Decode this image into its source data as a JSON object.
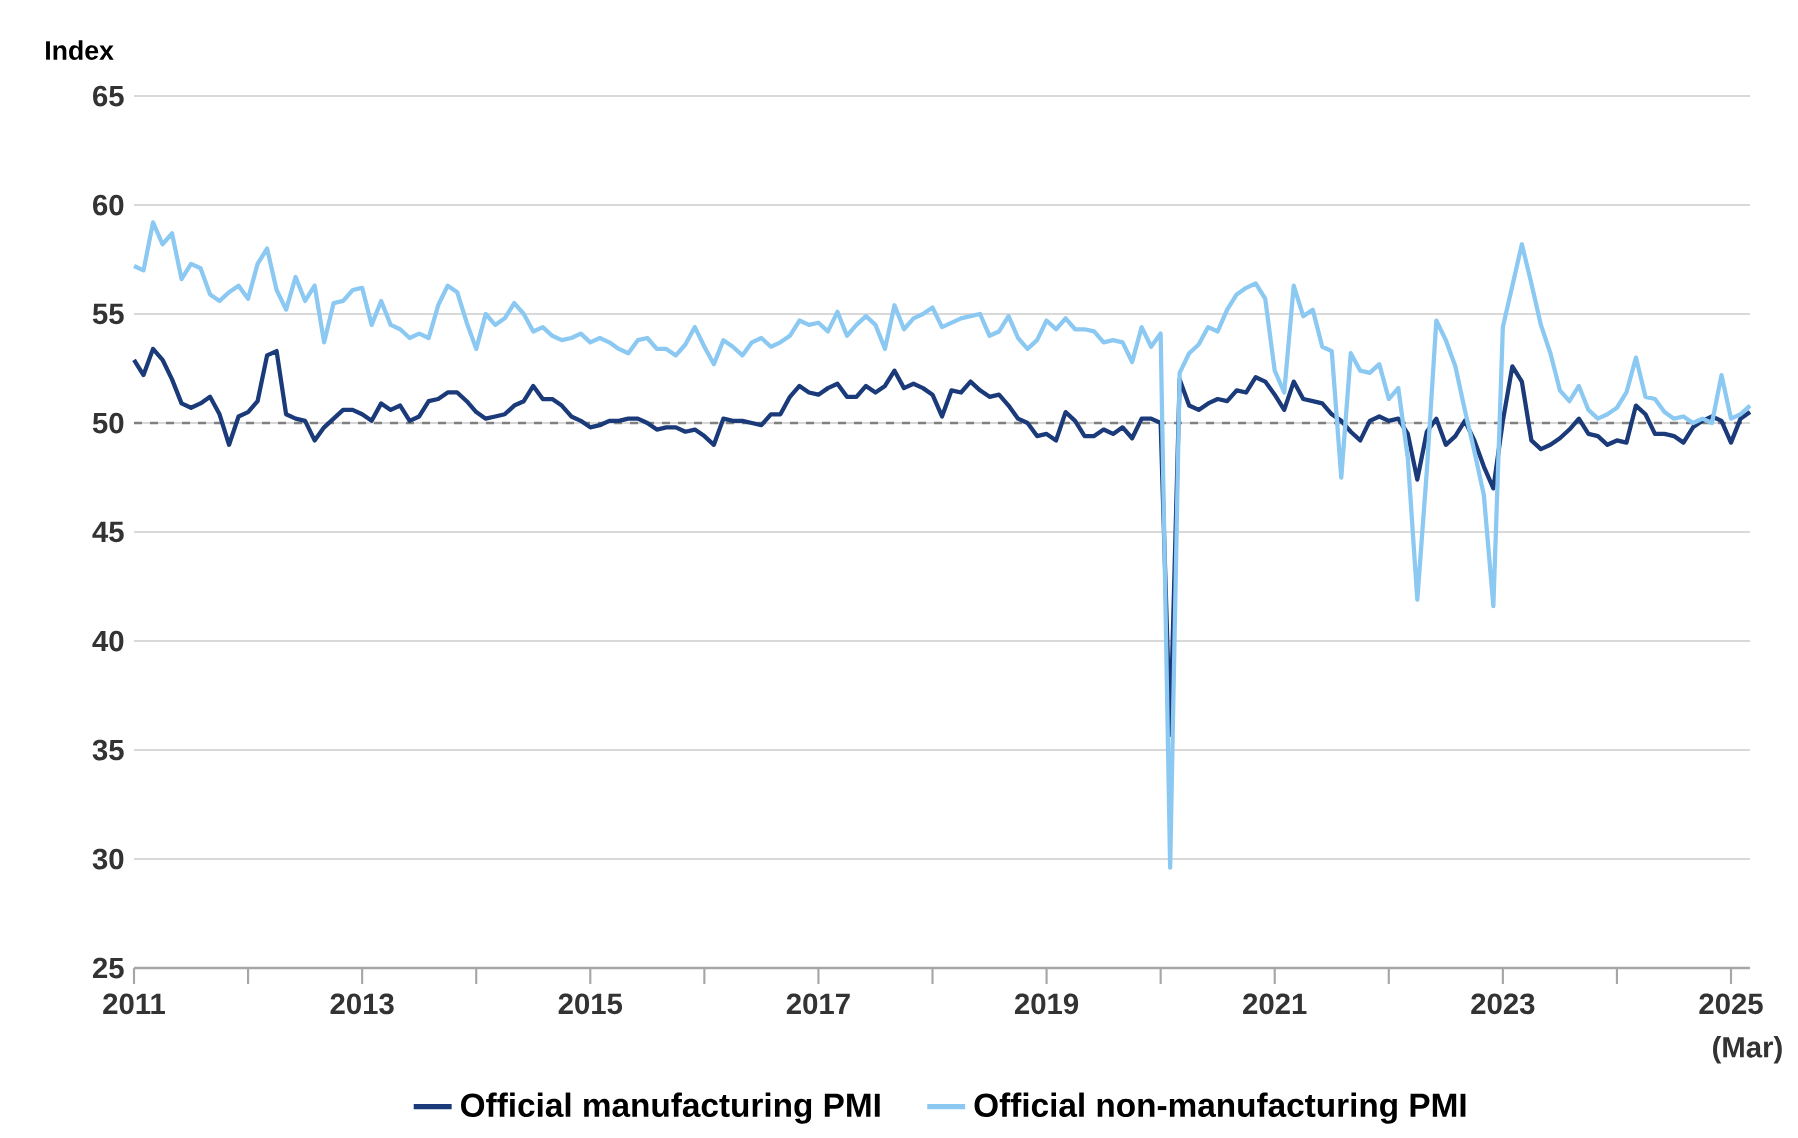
{
  "chart_data": {
    "type": "line",
    "ylabel": "Index",
    "x": [
      "2011-01",
      "2011-02",
      "2011-03",
      "2011-04",
      "2011-05",
      "2011-06",
      "2011-07",
      "2011-08",
      "2011-09",
      "2011-10",
      "2011-11",
      "2011-12",
      "2012-01",
      "2012-02",
      "2012-03",
      "2012-04",
      "2012-05",
      "2012-06",
      "2012-07",
      "2012-08",
      "2012-09",
      "2012-10",
      "2012-11",
      "2012-12",
      "2013-01",
      "2013-02",
      "2013-03",
      "2013-04",
      "2013-05",
      "2013-06",
      "2013-07",
      "2013-08",
      "2013-09",
      "2013-10",
      "2013-11",
      "2013-12",
      "2014-01",
      "2014-02",
      "2014-03",
      "2014-04",
      "2014-05",
      "2014-06",
      "2014-07",
      "2014-08",
      "2014-09",
      "2014-10",
      "2014-11",
      "2014-12",
      "2015-01",
      "2015-02",
      "2015-03",
      "2015-04",
      "2015-05",
      "2015-06",
      "2015-07",
      "2015-08",
      "2015-09",
      "2015-10",
      "2015-11",
      "2015-12",
      "2016-01",
      "2016-02",
      "2016-03",
      "2016-04",
      "2016-05",
      "2016-06",
      "2016-07",
      "2016-08",
      "2016-09",
      "2016-10",
      "2016-11",
      "2016-12",
      "2017-01",
      "2017-02",
      "2017-03",
      "2017-04",
      "2017-05",
      "2017-06",
      "2017-07",
      "2017-08",
      "2017-09",
      "2017-10",
      "2017-11",
      "2017-12",
      "2018-01",
      "2018-02",
      "2018-03",
      "2018-04",
      "2018-05",
      "2018-06",
      "2018-07",
      "2018-08",
      "2018-09",
      "2018-10",
      "2018-11",
      "2018-12",
      "2019-01",
      "2019-02",
      "2019-03",
      "2019-04",
      "2019-05",
      "2019-06",
      "2019-07",
      "2019-08",
      "2019-09",
      "2019-10",
      "2019-11",
      "2019-12",
      "2020-01",
      "2020-02",
      "2020-03",
      "2020-04",
      "2020-05",
      "2020-06",
      "2020-07",
      "2020-08",
      "2020-09",
      "2020-10",
      "2020-11",
      "2020-12",
      "2021-01",
      "2021-02",
      "2021-03",
      "2021-04",
      "2021-05",
      "2021-06",
      "2021-07",
      "2021-08",
      "2021-09",
      "2021-10",
      "2021-11",
      "2021-12",
      "2022-01",
      "2022-02",
      "2022-03",
      "2022-04",
      "2022-05",
      "2022-06",
      "2022-07",
      "2022-08",
      "2022-09",
      "2022-10",
      "2022-11",
      "2022-12",
      "2023-01",
      "2023-02",
      "2023-03",
      "2023-04",
      "2023-05",
      "2023-06",
      "2023-07",
      "2023-08",
      "2023-09",
      "2023-10",
      "2023-11",
      "2023-12",
      "2024-01",
      "2024-02",
      "2024-03",
      "2024-04",
      "2024-05",
      "2024-06",
      "2024-07",
      "2024-08",
      "2024-09",
      "2024-10",
      "2024-11",
      "2024-12",
      "2025-01",
      "2025-02",
      "2025-03"
    ],
    "series": [
      {
        "name": "Official manufacturing PMI",
        "color": "#1b3a7a",
        "values": [
          52.9,
          52.2,
          53.4,
          52.9,
          52.0,
          50.9,
          50.7,
          50.9,
          51.2,
          50.4,
          49.0,
          50.3,
          50.5,
          51.0,
          53.1,
          53.3,
          50.4,
          50.2,
          50.1,
          49.2,
          49.8,
          50.2,
          50.6,
          50.6,
          50.4,
          50.1,
          50.9,
          50.6,
          50.8,
          50.1,
          50.3,
          51.0,
          51.1,
          51.4,
          51.4,
          51.0,
          50.5,
          50.2,
          50.3,
          50.4,
          50.8,
          51.0,
          51.7,
          51.1,
          51.1,
          50.8,
          50.3,
          50.1,
          49.8,
          49.9,
          50.1,
          50.1,
          50.2,
          50.2,
          50.0,
          49.7,
          49.8,
          49.8,
          49.6,
          49.7,
          49.4,
          49.0,
          50.2,
          50.1,
          50.1,
          50.0,
          49.9,
          50.4,
          50.4,
          51.2,
          51.7,
          51.4,
          51.3,
          51.6,
          51.8,
          51.2,
          51.2,
          51.7,
          51.4,
          51.7,
          52.4,
          51.6,
          51.8,
          51.6,
          51.3,
          50.3,
          51.5,
          51.4,
          51.9,
          51.5,
          51.2,
          51.3,
          50.8,
          50.2,
          50.0,
          49.4,
          49.5,
          49.2,
          50.5,
          50.1,
          49.4,
          49.4,
          49.7,
          49.5,
          49.8,
          49.3,
          50.2,
          50.2,
          50.0,
          35.7,
          52.0,
          50.8,
          50.6,
          50.9,
          51.1,
          51.0,
          51.5,
          51.4,
          52.1,
          51.9,
          51.3,
          50.6,
          51.9,
          51.1,
          51.0,
          50.9,
          50.4,
          50.1,
          49.6,
          49.2,
          50.1,
          50.3,
          50.1,
          50.2,
          49.5,
          47.4,
          49.6,
          50.2,
          49.0,
          49.4,
          50.1,
          49.2,
          48.0,
          47.0,
          50.1,
          52.6,
          51.9,
          49.2,
          48.8,
          49.0,
          49.3,
          49.7,
          50.2,
          49.5,
          49.4,
          49.0,
          49.2,
          49.1,
          50.8,
          50.4,
          49.5,
          49.5,
          49.4,
          49.1,
          49.8,
          50.1,
          50.3,
          50.1,
          49.1,
          50.2,
          50.5
        ]
      },
      {
        "name": "Official non-manufacturing PMI",
        "color": "#8cc9f2",
        "values": [
          57.2,
          57.0,
          59.2,
          58.2,
          58.7,
          56.6,
          57.3,
          57.1,
          55.9,
          55.6,
          56.0,
          56.3,
          55.7,
          57.3,
          58.0,
          56.1,
          55.2,
          56.7,
          55.6,
          56.3,
          53.7,
          55.5,
          55.6,
          56.1,
          56.2,
          54.5,
          55.6,
          54.5,
          54.3,
          53.9,
          54.1,
          53.9,
          55.4,
          56.3,
          56.0,
          54.6,
          53.4,
          55.0,
          54.5,
          54.8,
          55.5,
          55.0,
          54.2,
          54.4,
          54.0,
          53.8,
          53.9,
          54.1,
          53.7,
          53.9,
          53.7,
          53.4,
          53.2,
          53.8,
          53.9,
          53.4,
          53.4,
          53.1,
          53.6,
          54.4,
          53.5,
          52.7,
          53.8,
          53.5,
          53.1,
          53.7,
          53.9,
          53.5,
          53.7,
          54.0,
          54.7,
          54.5,
          54.6,
          54.2,
          55.1,
          54.0,
          54.5,
          54.9,
          54.5,
          53.4,
          55.4,
          54.3,
          54.8,
          55.0,
          55.3,
          54.4,
          54.6,
          54.8,
          54.9,
          55.0,
          54.0,
          54.2,
          54.9,
          53.9,
          53.4,
          53.8,
          54.7,
          54.3,
          54.8,
          54.3,
          54.3,
          54.2,
          53.7,
          53.8,
          53.7,
          52.8,
          54.4,
          53.5,
          54.1,
          29.6,
          52.3,
          53.2,
          53.6,
          54.4,
          54.2,
          55.2,
          55.9,
          56.2,
          56.4,
          55.7,
          52.4,
          51.4,
          56.3,
          54.9,
          55.2,
          53.5,
          53.3,
          47.5,
          53.2,
          52.4,
          52.3,
          52.7,
          51.1,
          51.6,
          48.4,
          41.9,
          47.8,
          54.7,
          53.8,
          52.6,
          50.6,
          48.7,
          46.7,
          41.6,
          54.4,
          56.3,
          58.2,
          56.4,
          54.5,
          53.2,
          51.5,
          51.0,
          51.7,
          50.6,
          50.2,
          50.4,
          50.7,
          51.4,
          53.0,
          51.2,
          51.1,
          50.5,
          50.2,
          50.3,
          50.0,
          50.2,
          50.0,
          52.2,
          50.2,
          50.4,
          50.8
        ]
      }
    ],
    "xlim": [
      "2011-01",
      "2025-03"
    ],
    "xticks": [
      {
        "value": "2011",
        "label": "2011"
      },
      {
        "value": "2012",
        "label": null
      },
      {
        "value": "2013",
        "label": "2013"
      },
      {
        "value": "2014",
        "label": null
      },
      {
        "value": "2015",
        "label": "2015"
      },
      {
        "value": "2016",
        "label": null
      },
      {
        "value": "2017",
        "label": "2017"
      },
      {
        "value": "2018",
        "label": null
      },
      {
        "value": "2019",
        "label": "2019"
      },
      {
        "value": "2020",
        "label": null
      },
      {
        "value": "2021",
        "label": "2021"
      },
      {
        "value": "2022",
        "label": null
      },
      {
        "value": "2023",
        "label": "2023"
      },
      {
        "value": "2024",
        "label": null
      },
      {
        "value": "2025",
        "label": "2025"
      }
    ],
    "annotations": [
      "(Mar)"
    ],
    "ylim": [
      25,
      65
    ],
    "yticks": [
      25,
      30,
      35,
      40,
      45,
      50,
      55,
      60,
      65
    ],
    "grid": "y",
    "legend": "bottom",
    "line_style": "solid",
    "marker": "none",
    "ref_lines": [
      {
        "axis": "y",
        "value": 50,
        "color": "#808080",
        "line_style": "dashed"
      }
    ]
  }
}
